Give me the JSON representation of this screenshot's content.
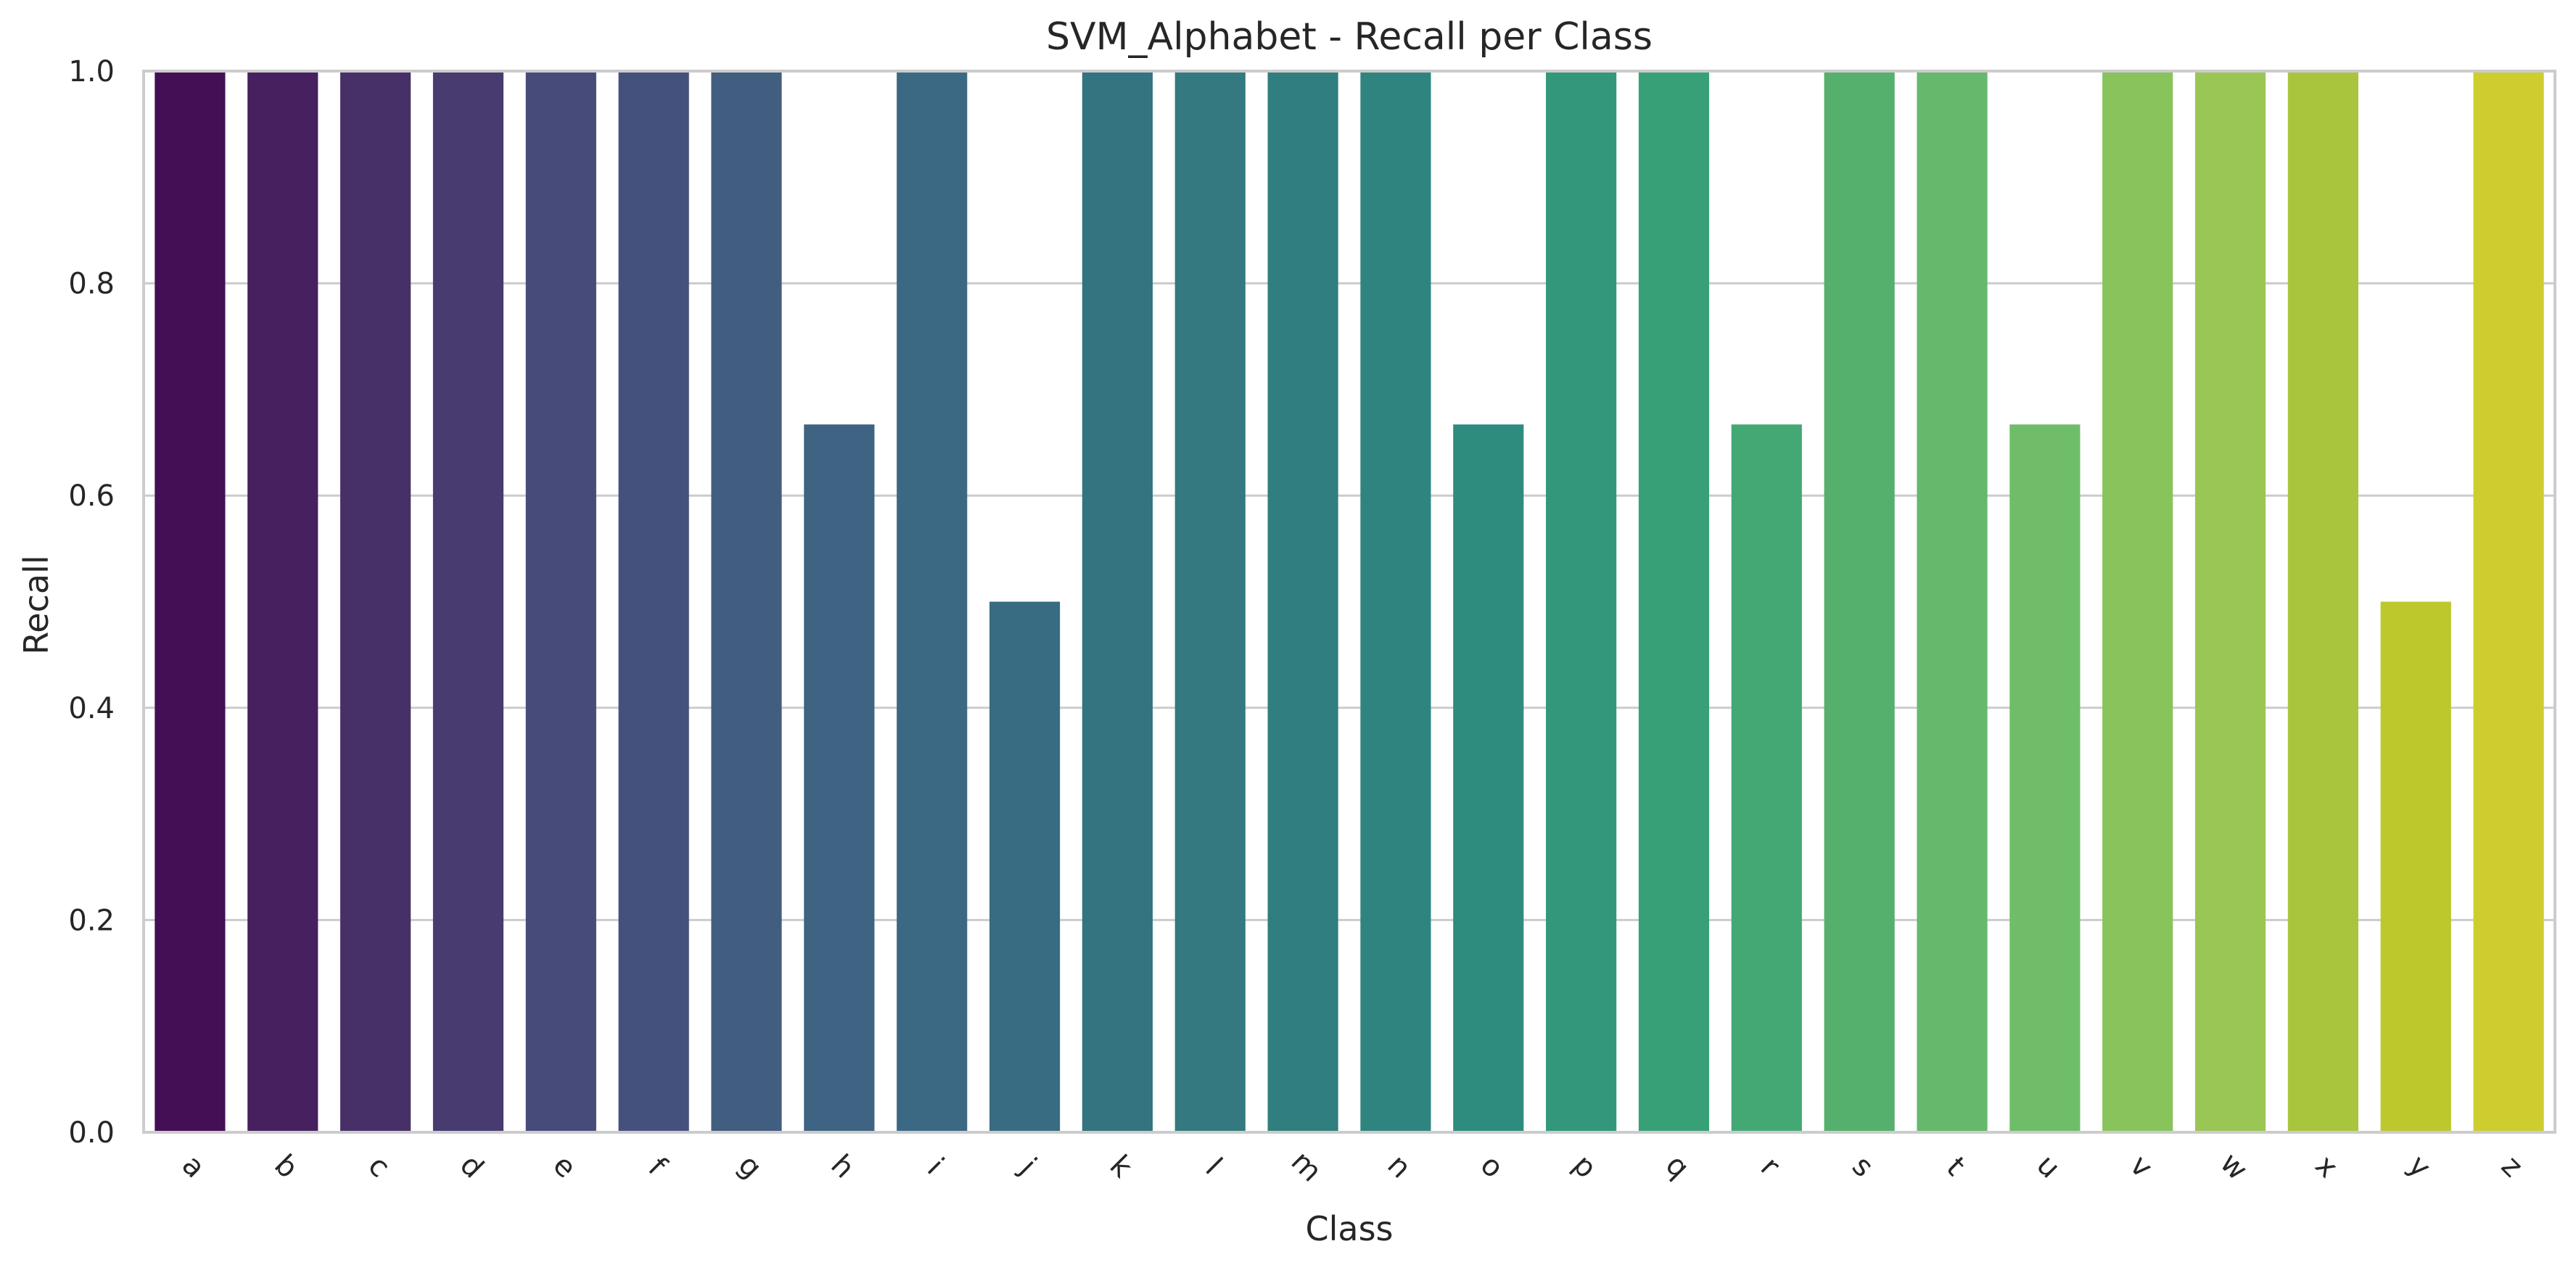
{
  "chart_data": {
    "type": "bar",
    "title": "SVM_Alphabet - Recall per Class",
    "xlabel": "Class",
    "ylabel": "Recall",
    "ylim": [
      0,
      1.0
    ],
    "yticks": [
      "0.0",
      "0.2",
      "0.4",
      "0.6",
      "0.8",
      "1.0"
    ],
    "grid": "horizontal",
    "palette": "viridis",
    "categories": [
      "a",
      "b",
      "c",
      "d",
      "e",
      "f",
      "g",
      "h",
      "i",
      "j",
      "k",
      "l",
      "m",
      "n",
      "o",
      "p",
      "q",
      "r",
      "s",
      "t",
      "u",
      "v",
      "w",
      "x",
      "y",
      "z"
    ],
    "values": [
      1.0,
      1.0,
      1.0,
      1.0,
      1.0,
      1.0,
      1.0,
      0.667,
      1.0,
      0.5,
      1.0,
      1.0,
      1.0,
      1.0,
      0.667,
      1.0,
      1.0,
      0.667,
      1.0,
      1.0,
      0.667,
      1.0,
      1.0,
      1.0,
      0.5,
      1.0
    ],
    "colors": [
      "#440f55",
      "#46205f",
      "#473067",
      "#473b6f",
      "#474b7a",
      "#44517d",
      "#415e80",
      "#3e6383",
      "#3b6984",
      "#376c82",
      "#347380",
      "#33797f",
      "#317e7f",
      "#308480",
      "#2e8c7e",
      "#32977b",
      "#38a077",
      "#43a874",
      "#55b06d",
      "#66b86c",
      "#6fbd69",
      "#88c35c",
      "#9ac654",
      "#a9c53e",
      "#bcc82c",
      "#cdcd2f"
    ]
  }
}
